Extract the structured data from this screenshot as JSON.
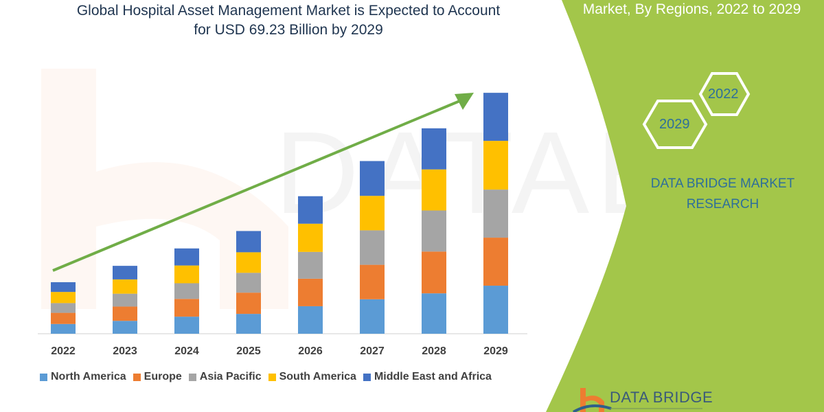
{
  "title_line1": "Global Hospital Asset Management Market is Expected to Account",
  "title_line2": "for USD 69.23 Billion by 2029",
  "panel": {
    "subtitle": "Market, By Regions, 2022 to 2029",
    "hex_years": [
      "2022",
      "2029"
    ],
    "brand_line1": "DATA BRIDGE MARKET",
    "brand_line2": "RESEARCH",
    "logo_text": "DATA BRIDGE",
    "panel_color": "#a3c64a"
  },
  "chart_data": {
    "type": "bar",
    "stacked": true,
    "categories": [
      "2022",
      "2023",
      "2024",
      "2025",
      "2026",
      "2027",
      "2028",
      "2029"
    ],
    "series": [
      {
        "name": "North America",
        "color": "#5b9bd5",
        "values": [
          2.8,
          3.7,
          4.9,
          5.7,
          7.9,
          9.9,
          11.6,
          13.8
        ]
      },
      {
        "name": "Europe",
        "color": "#ed7d31",
        "values": [
          3.2,
          4.1,
          5.1,
          6.1,
          7.9,
          9.9,
          12.0,
          13.8
        ]
      },
      {
        "name": "Asia Pacific",
        "color": "#a5a5a5",
        "values": [
          2.8,
          3.7,
          4.5,
          5.7,
          7.7,
          9.9,
          11.8,
          13.8
        ]
      },
      {
        "name": "South America",
        "color": "#ffc000",
        "values": [
          3.2,
          4.1,
          5.1,
          5.9,
          8.1,
          9.9,
          11.8,
          14.0
        ]
      },
      {
        "name": "Middle East and Africa",
        "color": "#4472c4",
        "values": [
          2.8,
          3.9,
          4.9,
          6.1,
          7.9,
          10.0,
          11.8,
          13.8
        ]
      }
    ],
    "ylim": [
      0,
      69.23
    ],
    "y_axis_shown": false,
    "grid": false,
    "legend": "bottom",
    "trend_arrow": {
      "color": "#70ad47",
      "direction": "up-right"
    }
  }
}
